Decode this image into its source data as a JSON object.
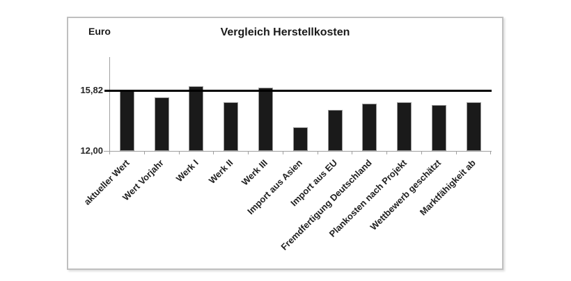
{
  "chart_data": {
    "type": "bar",
    "title": "Vergleich Herstellkosten",
    "ylabel": "Euro",
    "xlabel": "",
    "categories": [
      "aktueller Wert",
      "Wert Vorjahr",
      "Werk I",
      "Werk II",
      "Werk III",
      "Import aus Asien",
      "Import aus EU",
      "Fremdfertigung Deutschland",
      "Plankosten nach Projekt",
      "Wettbewerb geschätzt",
      "Marktfähigkeit ab"
    ],
    "values": [
      15.82,
      15.4,
      16.1,
      15.1,
      16.0,
      13.5,
      14.6,
      15.0,
      15.1,
      14.9,
      15.1
    ],
    "reference_line": 15.82,
    "ytick_labels": [
      "15,82",
      "12,00"
    ],
    "ytick_values": [
      15.82,
      12.0
    ],
    "ylim": [
      12.0,
      18.0
    ],
    "grid": "off",
    "legend_position": "none",
    "bar_color": "#1a1a1a",
    "reference_line_color": "#000000"
  }
}
